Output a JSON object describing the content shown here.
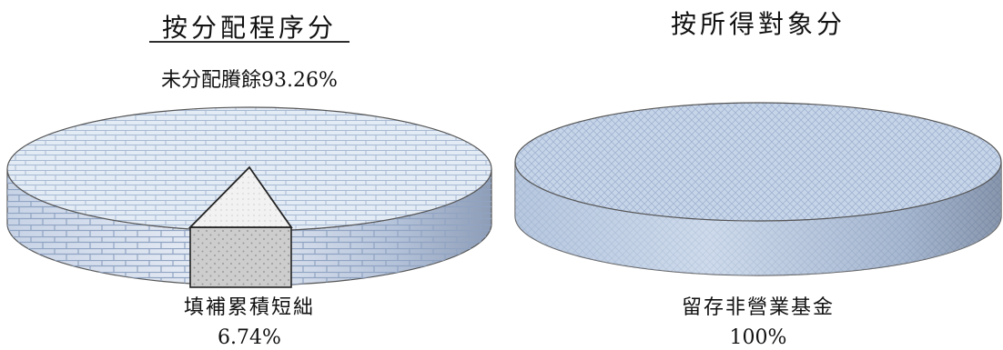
{
  "chart_data": [
    {
      "type": "pie",
      "title": "按分配程序分",
      "slices": [
        {
          "label": "未分配賸餘",
          "value": 93.26,
          "display": "93.26%",
          "label_text": "未分配賸餘93.26%"
        },
        {
          "label": "填補累積短絀",
          "value": 6.74,
          "display": "6.74%"
        }
      ],
      "style": "3d",
      "colors": {
        "main": "#dde6f2",
        "main_line": "#a9bbd6",
        "small": "#d4d4d4",
        "small_top": "#f0f0f0"
      }
    },
    {
      "type": "pie",
      "title": "按所得對象分",
      "slices": [
        {
          "label": "留存非營業基金",
          "value": 100,
          "display": "100%"
        }
      ],
      "style": "3d",
      "colors": {
        "main": "#c9d7ea",
        "main_line": "#8fa6c6"
      }
    }
  ]
}
